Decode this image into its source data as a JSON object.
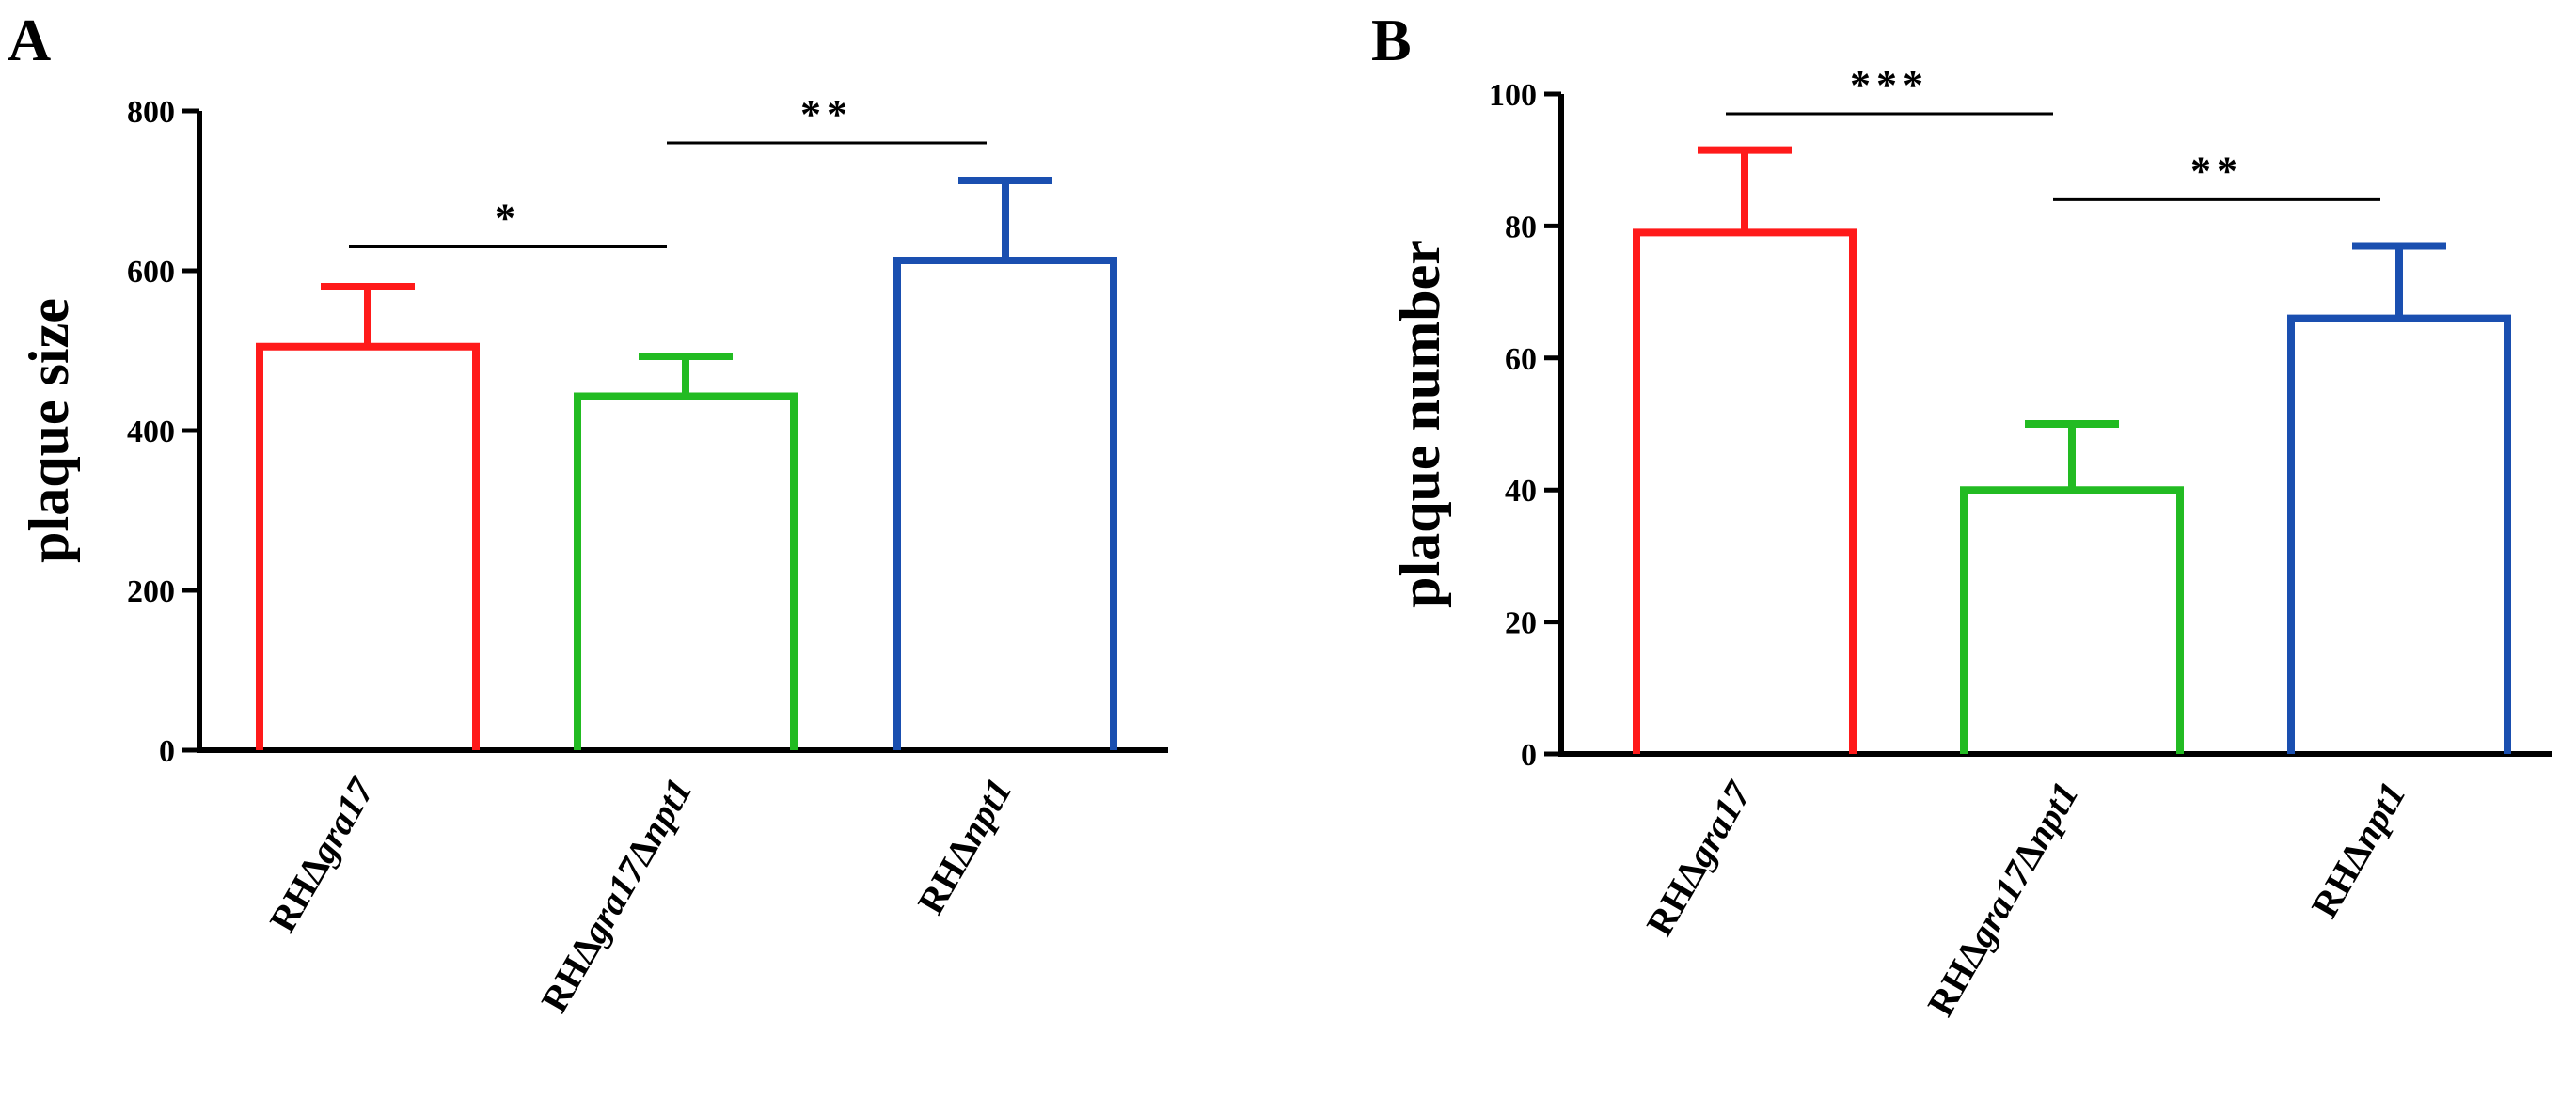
{
  "chart_data": [
    {
      "panel": "A",
      "type": "bar",
      "title": "",
      "xlabel": "",
      "ylabel": "plaque size",
      "ylim": [
        0,
        800
      ],
      "yticks": [
        0,
        200,
        400,
        600,
        800
      ],
      "categories": [
        {
          "prefix": "RH",
          "parts": [
            {
              "t": "Δ",
              "i": false
            },
            {
              "t": "gra17",
              "i": true
            }
          ]
        },
        {
          "prefix": "RH",
          "parts": [
            {
              "t": "Δ",
              "i": false
            },
            {
              "t": "gra17",
              "i": true
            },
            {
              "t": "Δ",
              "i": false
            },
            {
              "t": "npt1",
              "i": true
            }
          ]
        },
        {
          "prefix": "RH",
          "parts": [
            {
              "t": "Δ",
              "i": false
            },
            {
              "t": "npt1",
              "i": true
            }
          ]
        }
      ],
      "values": [
        505,
        443,
        613
      ],
      "errors": [
        75,
        50,
        100
      ],
      "colors": [
        "#ff1a1a",
        "#22bb22",
        "#1a4fb0"
      ],
      "significance": [
        {
          "from": 0,
          "to": 1,
          "label": "*",
          "y": 630
        },
        {
          "from": 1,
          "to": 2,
          "label": "**",
          "y": 760
        }
      ]
    },
    {
      "panel": "B",
      "type": "bar",
      "title": "",
      "xlabel": "",
      "ylabel": "plaque number",
      "ylim": [
        0,
        100
      ],
      "yticks": [
        0,
        20,
        40,
        60,
        80,
        100
      ],
      "categories": [
        {
          "prefix": "RH",
          "parts": [
            {
              "t": "Δ",
              "i": false
            },
            {
              "t": "gra17",
              "i": true
            }
          ]
        },
        {
          "prefix": "RH",
          "parts": [
            {
              "t": "Δ",
              "i": false
            },
            {
              "t": "gra17",
              "i": true
            },
            {
              "t": "Δ",
              "i": false
            },
            {
              "t": "npt1",
              "i": true
            }
          ]
        },
        {
          "prefix": "RH",
          "parts": [
            {
              "t": "Δ",
              "i": false
            },
            {
              "t": "npt1",
              "i": true
            }
          ]
        }
      ],
      "values": [
        79,
        40,
        66
      ],
      "errors": [
        12.5,
        10,
        11
      ],
      "colors": [
        "#ff1a1a",
        "#22bb22",
        "#1a4fb0"
      ],
      "significance": [
        {
          "from": 0,
          "to": 1,
          "label": "***",
          "y": 97
        },
        {
          "from": 1,
          "to": 2,
          "label": "**",
          "y": 84
        }
      ]
    }
  ]
}
